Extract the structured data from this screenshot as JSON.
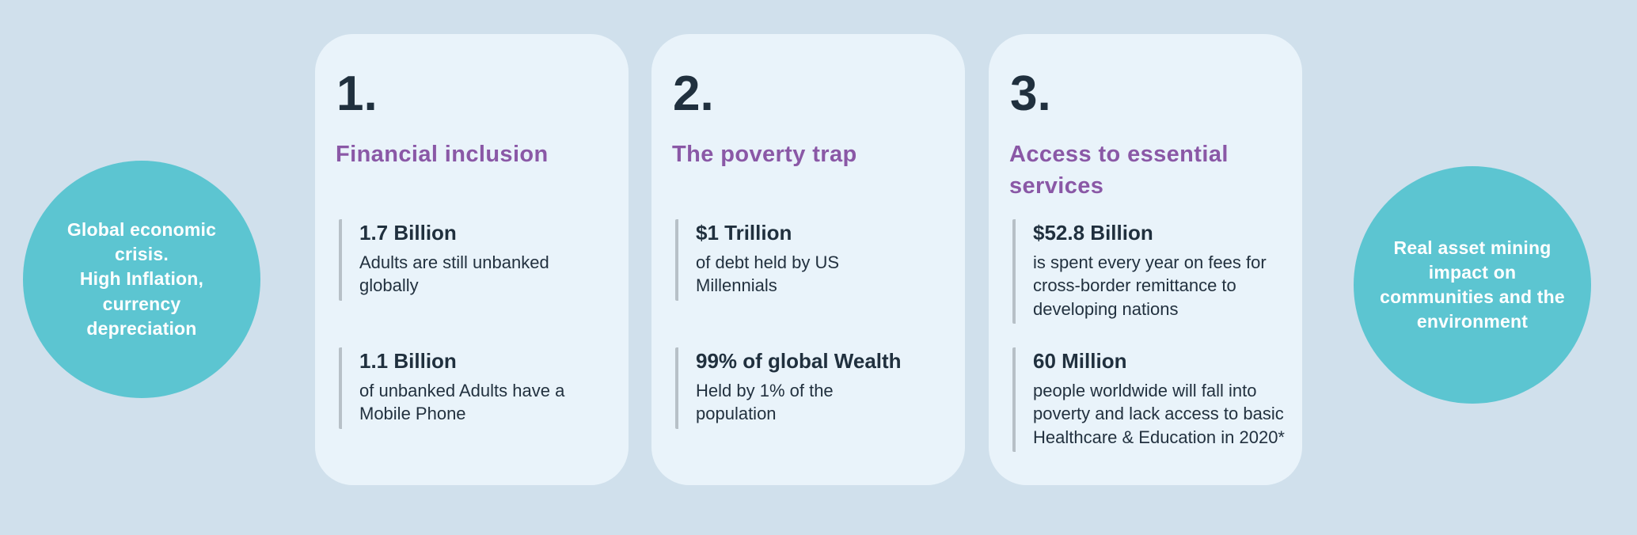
{
  "colors": {
    "background": "#d0e0ec",
    "card_background": "#e9f3fa",
    "bubble_teal": "#5cc5d1",
    "title_purple": "#8a58a6",
    "text_dark": "#20303e",
    "stat_bar_gray": "#b7c0c7",
    "bubble_text_white": "#ffffff"
  },
  "left_bubble": {
    "lines": {
      "0": "Global economic",
      "1": "crisis.",
      "2": "High Inflation,",
      "3": "currency",
      "4": "depreciation"
    },
    "full_text": "Global economic crisis. High Inflation, currency depreciation"
  },
  "right_bubble": {
    "lines": {
      "0": "Real asset  mining",
      "1": "impact on",
      "2": "communities and the",
      "3": "environment"
    },
    "full_text": "Real asset  mining impact on communities and the environment"
  },
  "cards": [
    {
      "number": "1.",
      "title": "Financial inclusion",
      "stats": [
        {
          "value": "1.7 Billion",
          "desc": "Adults are still unbanked globally"
        },
        {
          "value": "1.1 Billion",
          "desc": "of unbanked Adults have a Mobile Phone"
        }
      ]
    },
    {
      "number": "2.",
      "title": "The poverty trap",
      "stats": [
        {
          "value": "$1 Trillion",
          "desc": "of debt held by US Millennials"
        },
        {
          "value": "99% of global Wealth",
          "desc": "Held by 1% of the population"
        }
      ]
    },
    {
      "number": "3.",
      "title": "Access to essential services",
      "stats": [
        {
          "value": "$52.8 Billion",
          "desc": "is spent every year on fees for cross-border remittance to developing nations"
        },
        {
          "value": "60 Million",
          "desc": "people worldwide will fall into poverty and lack access to basic Healthcare & Education in 2020*"
        }
      ]
    }
  ]
}
